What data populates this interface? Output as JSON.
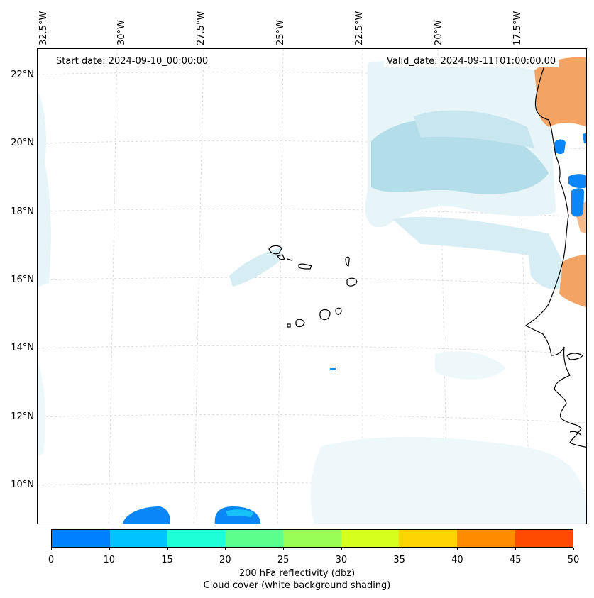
{
  "map": {
    "start_date": "Start date: 2024-09-10_00:00:00",
    "valid_date": "Valid_date: 2024-09-11T01:00:00.00",
    "lon_labels": [
      "32.5°W",
      "30°W",
      "27.5°W",
      "25°W",
      "22.5°W",
      "20°W",
      "17.5°W"
    ],
    "lat_labels": [
      "22°N",
      "20°N",
      "18°N",
      "16°N",
      "14°N",
      "12°N",
      "10°N"
    ]
  },
  "colorbar": {
    "colors": [
      "#0080ff",
      "#00c4ff",
      "#1effd8",
      "#5cff8c",
      "#98ff54",
      "#d6ff1e",
      "#ffd400",
      "#ff8c00",
      "#ff4a00"
    ],
    "ticks": [
      "0",
      "10",
      "15",
      "20",
      "25",
      "30",
      "35",
      "40",
      "45",
      "50"
    ],
    "label_line1": "200 hPa reflectivity (dbz)",
    "label_line2": "Cloud cover (white background shading)"
  },
  "colors": {
    "cloud": "#a9d8e6",
    "land_warm": "#f3a465",
    "reflectivity_low": "#0a86f6",
    "reflectivity_mid": "#16c2f5"
  }
}
